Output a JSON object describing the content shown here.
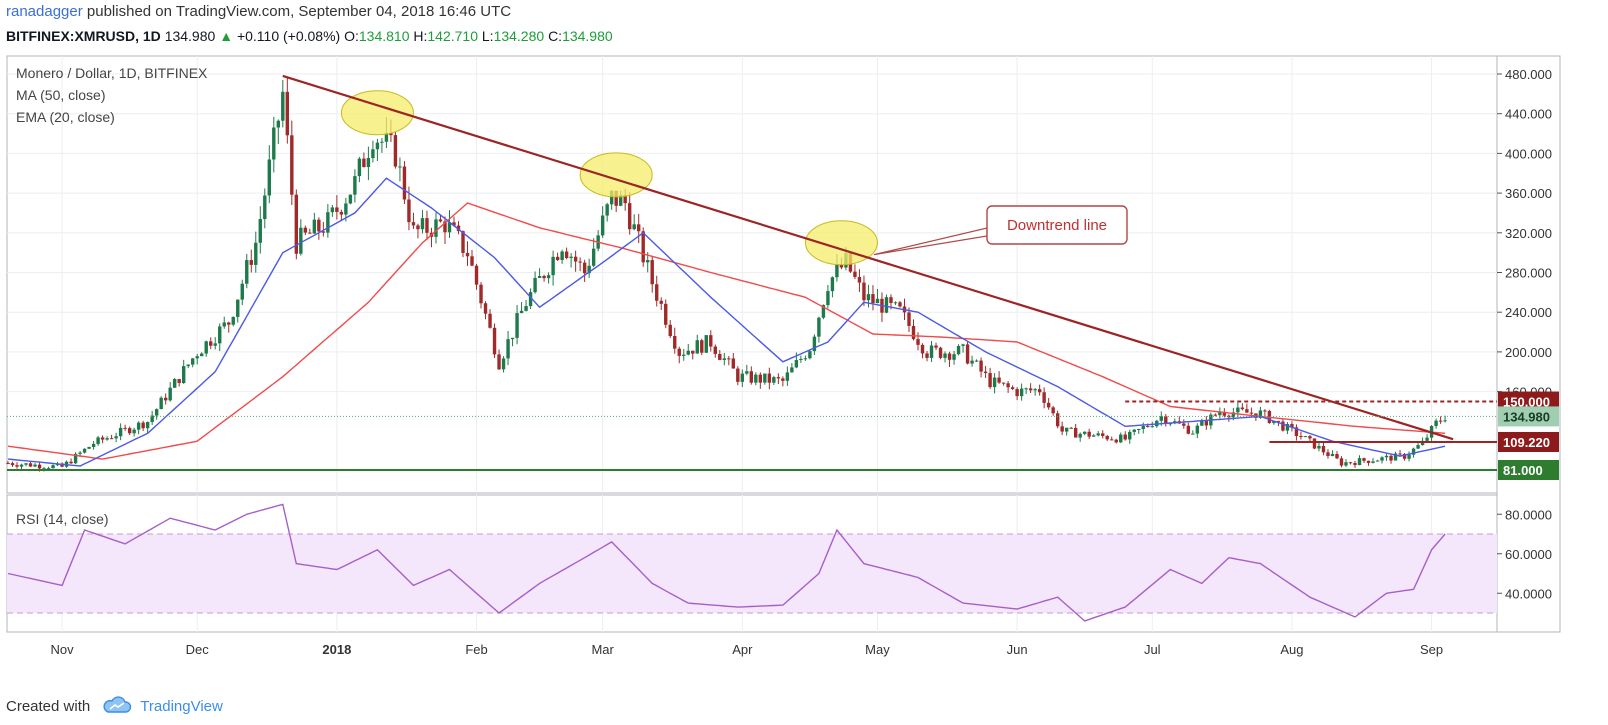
{
  "header": {
    "author": "ranadagger",
    "published": "published on TradingView.com, September 04, 2018 16:46 UTC",
    "symbol": "BITFINEX:XMRUSD, 1D",
    "last": "134.980",
    "change_arrow": "▲",
    "change": "+0.110 (+0.08%)",
    "o_label": "O:",
    "o": "134.810",
    "h_label": "H:",
    "h": "142.710",
    "l_label": "L:",
    "l": "134.280",
    "c_label": "C:",
    "c": "134.980"
  },
  "footer": {
    "created_with": "Created with",
    "brand": "TradingView",
    "logo_icon": "tradingview-cloud-icon"
  },
  "colors": {
    "up": "#1e7a4a",
    "down": "#a02a2a",
    "ma50": "#f04a4a",
    "ema20": "#4a5ae8",
    "trend": "#9c2424",
    "support": "#2e7d2e",
    "rsi": "#a75fc8",
    "rsi_band": "#f4e6fb",
    "highlight": "#f5ec6a"
  },
  "chart_data": [
    {
      "type": "candlestick",
      "title": "Monero / Dollar, 1D, BITFINEX",
      "indicators": [
        "MA (50, close)",
        "EMA (20, close)"
      ],
      "xlabel": "",
      "ylabel": "",
      "ylim": [
        70,
        490
      ],
      "grid": true,
      "x_ticks": [
        "Nov",
        "Dec",
        "2018",
        "Feb",
        "Mar",
        "Apr",
        "May",
        "Jun",
        "Jul",
        "Aug",
        "Sep"
      ],
      "y_ticks": [
        "160.000",
        "200.000",
        "240.000",
        "280.000",
        "320.000",
        "360.000",
        "400.000",
        "440.000",
        "480.000"
      ],
      "price_keypoints": [
        [
          "2017-10-20",
          88
        ],
        [
          "2017-11-01",
          84
        ],
        [
          "2017-11-08",
          108
        ],
        [
          "2017-11-20",
          130
        ],
        [
          "2017-12-01",
          200
        ],
        [
          "2017-12-08",
          230
        ],
        [
          "2017-12-14",
          310
        ],
        [
          "2017-12-20",
          460
        ],
        [
          "2017-12-23",
          310
        ],
        [
          "2017-12-30",
          330
        ],
        [
          "2018-01-05",
          370
        ],
        [
          "2018-01-09",
          420
        ],
        [
          "2018-01-14",
          400
        ],
        [
          "2018-01-18",
          320
        ],
        [
          "2018-01-25",
          330
        ],
        [
          "2018-01-30",
          300
        ],
        [
          "2018-02-06",
          190
        ],
        [
          "2018-02-12",
          250
        ],
        [
          "2018-02-20",
          310
        ],
        [
          "2018-02-25",
          280
        ],
        [
          "2018-03-03",
          355
        ],
        [
          "2018-03-06",
          350
        ],
        [
          "2018-03-12",
          270
        ],
        [
          "2018-03-18",
          200
        ],
        [
          "2018-03-25",
          210
        ],
        [
          "2018-03-31",
          175
        ],
        [
          "2018-04-10",
          170
        ],
        [
          "2018-04-16",
          205
        ],
        [
          "2018-04-20",
          270
        ],
        [
          "2018-04-24",
          290
        ],
        [
          "2018-04-28",
          255
        ],
        [
          "2018-05-06",
          240
        ],
        [
          "2018-05-12",
          200
        ],
        [
          "2018-05-20",
          200
        ],
        [
          "2018-05-26",
          170
        ],
        [
          "2018-06-01",
          160
        ],
        [
          "2018-06-06",
          162
        ],
        [
          "2018-06-11",
          120
        ],
        [
          "2018-06-25",
          112
        ],
        [
          "2018-07-03",
          135
        ],
        [
          "2018-07-10",
          120
        ],
        [
          "2018-07-16",
          140
        ],
        [
          "2018-07-25",
          138
        ],
        [
          "2018-08-03",
          115
        ],
        [
          "2018-08-12",
          88
        ],
        [
          "2018-08-20",
          92
        ],
        [
          "2018-08-26",
          95
        ],
        [
          "2018-08-30",
          108
        ],
        [
          "2018-09-02",
          128
        ],
        [
          "2018-09-04",
          135
        ]
      ],
      "ma50_keypoints": [
        [
          "2017-10-20",
          105
        ],
        [
          "2017-11-10",
          92
        ],
        [
          "2017-12-01",
          110
        ],
        [
          "2017-12-20",
          175
        ],
        [
          "2018-01-08",
          250
        ],
        [
          "2018-01-20",
          310
        ],
        [
          "2018-01-30",
          350
        ],
        [
          "2018-02-15",
          325
        ],
        [
          "2018-03-05",
          305
        ],
        [
          "2018-03-25",
          280
        ],
        [
          "2018-04-15",
          255
        ],
        [
          "2018-04-30",
          218
        ],
        [
          "2018-05-15",
          215
        ],
        [
          "2018-06-01",
          210
        ],
        [
          "2018-06-20",
          175
        ],
        [
          "2018-07-05",
          145
        ],
        [
          "2018-07-25",
          135
        ],
        [
          "2018-08-15",
          125
        ],
        [
          "2018-09-04",
          118
        ]
      ],
      "ema20_keypoints": [
        [
          "2017-10-20",
          92
        ],
        [
          "2017-11-05",
          85
        ],
        [
          "2017-11-20",
          118
        ],
        [
          "2017-12-05",
          180
        ],
        [
          "2017-12-20",
          300
        ],
        [
          "2018-01-05",
          340
        ],
        [
          "2018-01-12",
          375
        ],
        [
          "2018-01-22",
          345
        ],
        [
          "2018-02-05",
          295
        ],
        [
          "2018-02-15",
          245
        ],
        [
          "2018-03-01",
          290
        ],
        [
          "2018-03-10",
          320
        ],
        [
          "2018-03-25",
          255
        ],
        [
          "2018-04-10",
          190
        ],
        [
          "2018-04-20",
          210
        ],
        [
          "2018-04-28",
          250
        ],
        [
          "2018-05-10",
          240
        ],
        [
          "2018-05-25",
          200
        ],
        [
          "2018-06-10",
          165
        ],
        [
          "2018-06-25",
          125
        ],
        [
          "2018-07-10",
          130
        ],
        [
          "2018-07-25",
          135
        ],
        [
          "2018-08-10",
          110
        ],
        [
          "2018-08-25",
          95
        ],
        [
          "2018-09-04",
          105
        ]
      ],
      "annotations": {
        "downtrend_label": "Downtrend line",
        "trendline": [
          [
            "2017-12-20",
            478
          ],
          [
            "2018-09-04",
            112
          ]
        ],
        "resistance_dashed": 150,
        "support_box_line": 109.22,
        "support_line": 81,
        "highlight_ellipses": [
          "2018-01-10",
          "2018-03-04",
          "2018-04-23"
        ]
      },
      "price_labels": [
        {
          "text": "150.000",
          "value": 150,
          "kind": "dark-red"
        },
        {
          "text": "134.980",
          "value": 134.98,
          "kind": "light-green"
        },
        {
          "text": "109.220",
          "value": 109.22,
          "kind": "dark-red"
        },
        {
          "text": "81.000",
          "value": 81,
          "kind": "green"
        }
      ]
    },
    {
      "type": "line",
      "title": "RSI (14, close)",
      "ylim": [
        22,
        88
      ],
      "band": [
        30,
        70
      ],
      "y_ticks": [
        "40.0000",
        "60.0000",
        "80.0000"
      ],
      "rsi_keypoints": [
        [
          "2017-10-20",
          50
        ],
        [
          "2017-11-01",
          44
        ],
        [
          "2017-11-06",
          72
        ],
        [
          "2017-11-15",
          65
        ],
        [
          "2017-11-25",
          78
        ],
        [
          "2017-12-05",
          72
        ],
        [
          "2017-12-12",
          80
        ],
        [
          "2017-12-20",
          85
        ],
        [
          "2017-12-23",
          55
        ],
        [
          "2018-01-01",
          52
        ],
        [
          "2018-01-10",
          62
        ],
        [
          "2018-01-18",
          44
        ],
        [
          "2018-01-26",
          52
        ],
        [
          "2018-02-06",
          30
        ],
        [
          "2018-02-15",
          45
        ],
        [
          "2018-02-25",
          58
        ],
        [
          "2018-03-03",
          66
        ],
        [
          "2018-03-12",
          45
        ],
        [
          "2018-03-20",
          35
        ],
        [
          "2018-03-31",
          33
        ],
        [
          "2018-04-10",
          34
        ],
        [
          "2018-04-18",
          50
        ],
        [
          "2018-04-22",
          72
        ],
        [
          "2018-04-28",
          55
        ],
        [
          "2018-05-10",
          48
        ],
        [
          "2018-05-20",
          35
        ],
        [
          "2018-06-01",
          32
        ],
        [
          "2018-06-10",
          38
        ],
        [
          "2018-06-16",
          26
        ],
        [
          "2018-06-25",
          33
        ],
        [
          "2018-07-05",
          52
        ],
        [
          "2018-07-12",
          45
        ],
        [
          "2018-07-18",
          58
        ],
        [
          "2018-07-25",
          55
        ],
        [
          "2018-08-05",
          38
        ],
        [
          "2018-08-15",
          28
        ],
        [
          "2018-08-22",
          40
        ],
        [
          "2018-08-28",
          42
        ],
        [
          "2018-09-01",
          62
        ],
        [
          "2018-09-04",
          70
        ]
      ]
    }
  ]
}
